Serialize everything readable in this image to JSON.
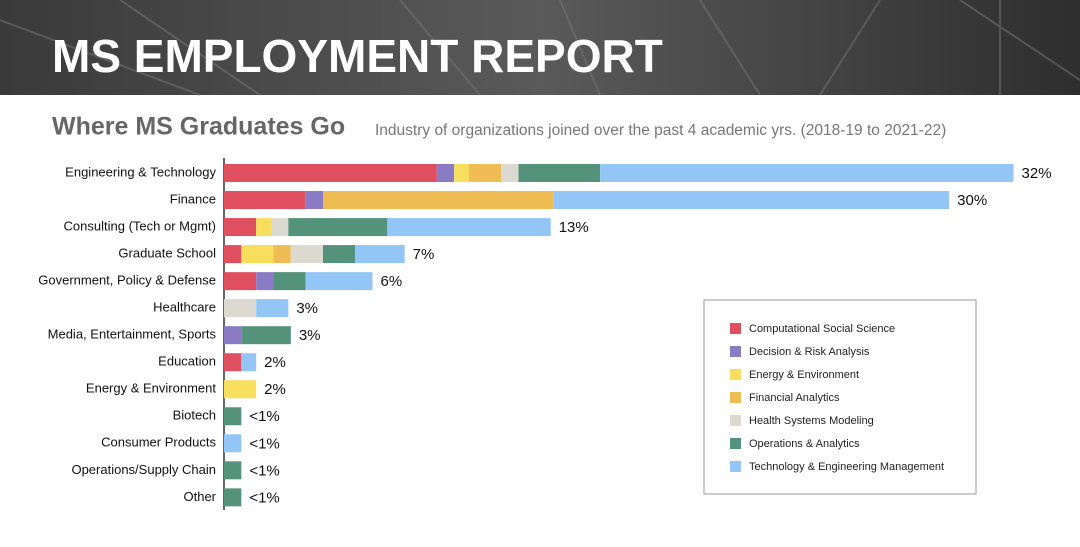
{
  "header": {
    "title": "MS EMPLOYMENT REPORT"
  },
  "chart_data": {
    "type": "stacked-bar-horizontal",
    "title": "Where MS Graduates Go",
    "subtitle": "Industry of organizations joined over the past 4 academic yrs. (2018-19 to 2021-22)",
    "categories": [
      "Engineering & Technology",
      "Finance",
      "Consulting (Tech or Mgmt)",
      "Graduate School",
      "Government, Policy & Defense",
      "Healthcare",
      "Media, Entertainment, Sports",
      "Education",
      "Energy & Environment",
      "Biotech",
      "Consumer Products",
      "Operations/Supply Chain",
      "Other"
    ],
    "series": [
      {
        "name": "Computational Social Science",
        "color": "#e04f5f",
        "values": [
          8.6,
          3.3,
          1.3,
          0.7,
          1.3,
          0,
          0,
          0.7,
          0,
          0,
          0,
          0,
          0
        ]
      },
      {
        "name": "Decision & Risk Analysis",
        "color": "#8a7cc4",
        "values": [
          0.7,
          0.7,
          0,
          0,
          0.7,
          0,
          0.7,
          0,
          0,
          0,
          0,
          0,
          0
        ]
      },
      {
        "name": "Energy & Environment",
        "color": "#f7de5c",
        "values": [
          0.6,
          0,
          0.6,
          1.3,
          0,
          0,
          0,
          0,
          1.3,
          0,
          0,
          0,
          0
        ]
      },
      {
        "name": "Financial Analytics",
        "color": "#f0bd55",
        "values": [
          1.3,
          9.3,
          0,
          0.7,
          0,
          0,
          0,
          0,
          0,
          0,
          0,
          0,
          0
        ]
      },
      {
        "name": "Health Systems Modeling",
        "color": "#dcdad0",
        "values": [
          0.7,
          0,
          0.7,
          1.3,
          0,
          1.3,
          0,
          0,
          0,
          0,
          0,
          0,
          0
        ]
      },
      {
        "name": "Operations & Analytics",
        "color": "#55927c",
        "values": [
          3.3,
          0,
          4.0,
          1.3,
          1.3,
          0,
          2.0,
          0,
          0,
          0.7,
          0,
          0.7,
          0.7
        ]
      },
      {
        "name": "Technology & Engineering Management",
        "color": "#94c5f7",
        "values": [
          16.7,
          16.0,
          6.6,
          2.0,
          2.7,
          1.3,
          0,
          0.6,
          0,
          0,
          0.7,
          0,
          0
        ]
      }
    ],
    "totals": [
      32,
      30,
      13,
      7,
      6,
      3,
      3,
      2,
      2,
      0.7,
      0.7,
      0.7,
      0.7
    ],
    "total_labels": [
      "32%",
      "30%",
      "13%",
      "7%",
      "6%",
      "3%",
      "3%",
      "2%",
      "2%",
      "<1%",
      "<1%",
      "<1%",
      "<1%"
    ],
    "legend": "lower-right"
  }
}
